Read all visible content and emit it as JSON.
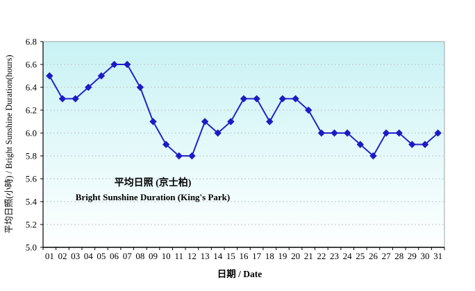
{
  "chart_data": {
    "type": "line",
    "x": [
      "01",
      "02",
      "03",
      "04",
      "05",
      "06",
      "07",
      "08",
      "09",
      "10",
      "11",
      "12",
      "13",
      "14",
      "15",
      "16",
      "17",
      "18",
      "19",
      "20",
      "21",
      "22",
      "23",
      "24",
      "25",
      "26",
      "27",
      "28",
      "29",
      "30",
      "31"
    ],
    "series": [
      {
        "name": "平均日照 (京士柏) / Bright Sunshine Duration (King's Park)",
        "values": [
          6.5,
          6.3,
          6.3,
          6.4,
          6.5,
          6.6,
          6.6,
          6.4,
          6.1,
          5.9,
          5.8,
          5.8,
          6.1,
          6.0,
          6.1,
          6.3,
          6.3,
          6.1,
          6.3,
          6.3,
          6.2,
          6.0,
          6.0,
          6.0,
          5.9,
          5.8,
          6.0,
          6.0,
          5.9,
          5.9,
          6.0
        ]
      }
    ],
    "title": "",
    "xlabel": "日期 / Date",
    "ylabel": "平均日照(小時) / Bright Sunshine Duration(hours)",
    "ylim": [
      5.0,
      6.8
    ],
    "ytick_step": 0.2,
    "grid": "horizontal-dashed",
    "legend_position": "inside-left-center",
    "legend_lines": [
      "平均日照 (京士柏)",
      "Bright Sunshine Duration (King's Park)"
    ],
    "marker": "diamond",
    "colors": {
      "line": "#2222cc",
      "marker": "#1c1cc4",
      "legend_text": "#932929",
      "plot_bg_top": "#c9f2f4",
      "plot_bg_bottom": "#feffff",
      "grid": "#bfc6c6",
      "axis": "#000000",
      "border": "#9aa5a5",
      "page_bg": "#ffffff"
    }
  }
}
